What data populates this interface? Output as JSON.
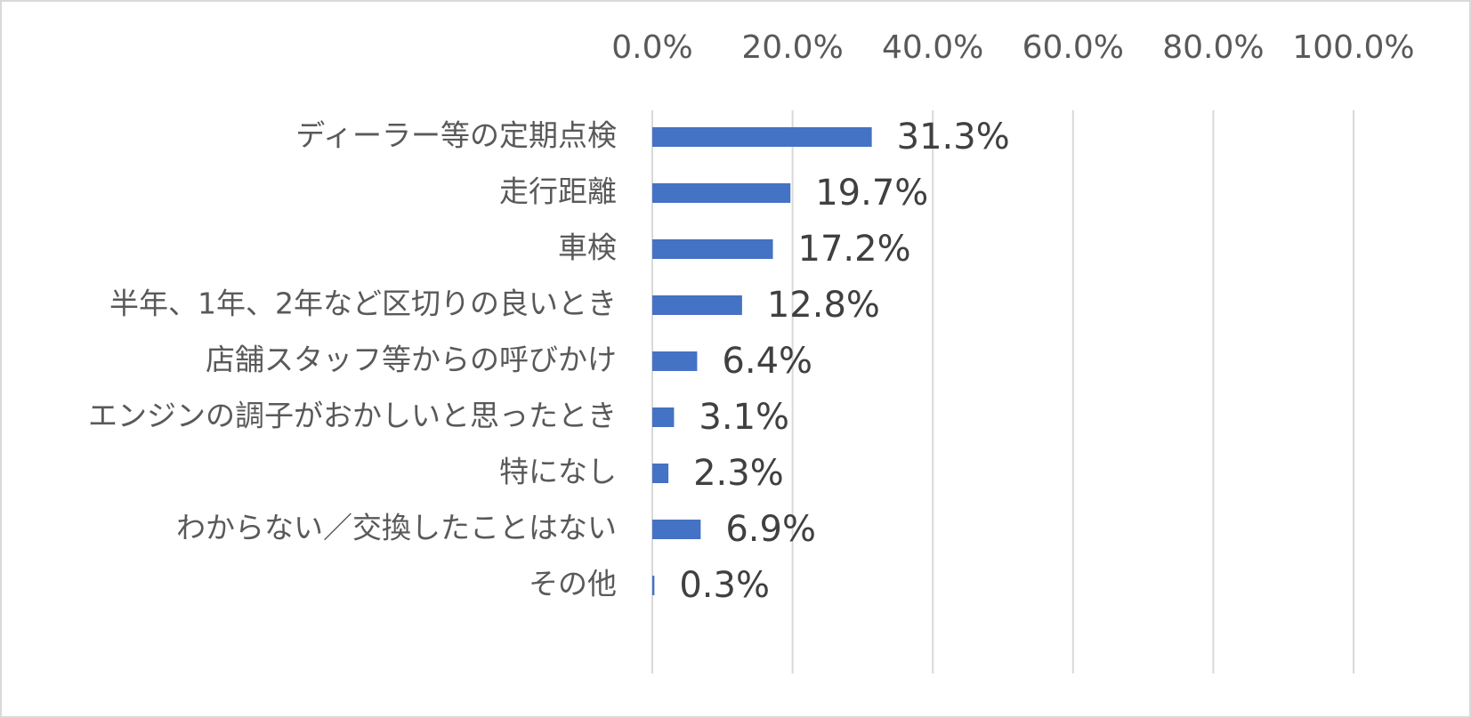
{
  "chart_data": {
    "type": "bar",
    "orientation": "horizontal",
    "categories": [
      "ディーラー等の定期点検",
      "走行距離",
      "車検",
      "半年、1年、2年など区切りの良いとき",
      "店舗スタッフ等からの呼びかけ",
      "エンジンの調子がおかしいと思ったとき",
      "特になし",
      "わからない／交換したことはない",
      "その他"
    ],
    "values": [
      31.3,
      19.7,
      17.2,
      12.8,
      6.4,
      3.1,
      2.3,
      6.9,
      0.3
    ],
    "data_labels": [
      "31.3%",
      "19.7%",
      "17.2%",
      "12.8%",
      "6.4%",
      "3.1%",
      "2.3%",
      "6.9%",
      "0.3%"
    ],
    "x_ticks": [
      0,
      20,
      40,
      60,
      80,
      100
    ],
    "x_tick_labels": [
      "0.0%",
      "20.0%",
      "40.0%",
      "60.0%",
      "80.0%",
      "100.0%"
    ],
    "xlim": [
      0,
      100
    ],
    "x_axis_position": "top",
    "grid": true,
    "legend": "none",
    "colors": {
      "bar": "#4472c4",
      "grid": "#d9d9d9",
      "tick_text": "#595959",
      "label_text": "#404040",
      "border": "#d9d9d9"
    }
  }
}
